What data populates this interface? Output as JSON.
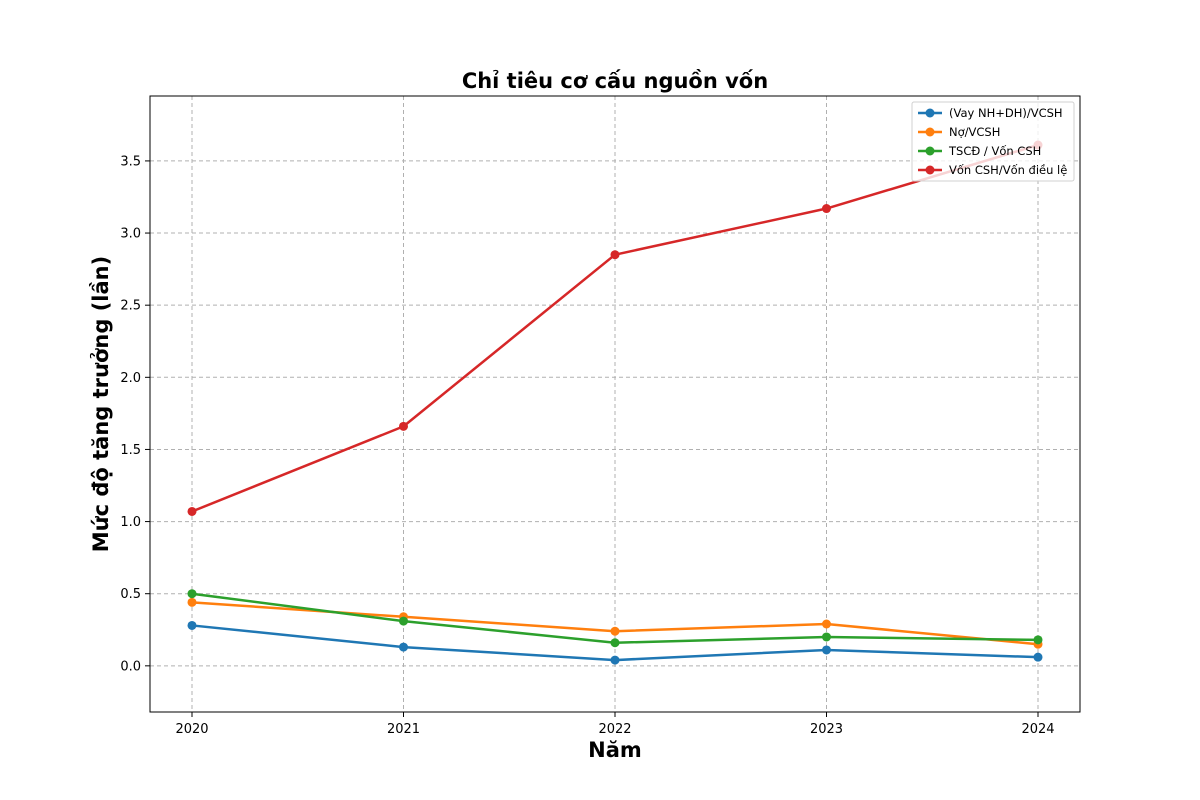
{
  "chart_data": {
    "type": "line",
    "title": "Chỉ tiêu cơ cấu nguồn vốn",
    "xlabel": "Năm",
    "ylabel": "Mức độ tăng trưởng (lần)",
    "x": [
      "2020",
      "2021",
      "2022",
      "2023",
      "2024"
    ],
    "ylim": [
      -0.32,
      3.95
    ],
    "yticks": [
      "0.0",
      "0.5",
      "1.0",
      "1.5",
      "2.0",
      "2.5",
      "3.0",
      "3.5"
    ],
    "grid": true,
    "legend_position": "top-right",
    "series": [
      {
        "name": "(Vay NH+DH)/VCSH",
        "color": "#1f77b4",
        "values": [
          0.28,
          0.13,
          0.04,
          0.11,
          0.06
        ]
      },
      {
        "name": "Nợ/VCSH",
        "color": "#ff7f0e",
        "values": [
          0.44,
          0.34,
          0.24,
          0.29,
          0.15
        ]
      },
      {
        "name": "TSCĐ / Vốn CSH",
        "color": "#2ca02c",
        "values": [
          0.5,
          0.31,
          0.16,
          0.2,
          0.18
        ]
      },
      {
        "name": "Vốn CSH/Vốn điều lệ",
        "color": "#d62728",
        "values": [
          1.07,
          1.66,
          2.85,
          3.17,
          3.61
        ]
      }
    ]
  }
}
